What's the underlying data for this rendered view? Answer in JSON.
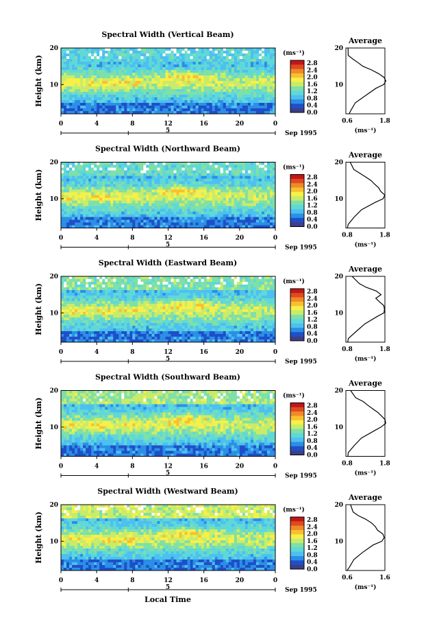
{
  "figure": {
    "x_label": "Local Time",
    "y_label": "Height (km)",
    "date_label": "Sep 1995",
    "unit_label": "(ms⁻¹)",
    "avg_title": "Average",
    "avg_unit": "(ms⁻¹)",
    "day_marker": "5"
  },
  "colors": {
    "scale": [
      "#3b3f8a",
      "#1f4fc8",
      "#2b8fe6",
      "#4dc0f0",
      "#5fd8d8",
      "#7fe0a8",
      "#c8ec6a",
      "#f6f04a",
      "#f8c030",
      "#f08a28",
      "#e04a20",
      "#c01818"
    ]
  },
  "chart_data": [
    {
      "type": "heatmap",
      "title": "Spectral Width (Vertical Beam)",
      "xlabel": "",
      "ylabel": "Height (km)",
      "x_ticks": [
        "0",
        "4",
        "8",
        "12",
        "16",
        "20",
        "0"
      ],
      "y_ticks": [
        "20",
        "10"
      ],
      "xlim": [
        0,
        24
      ],
      "ylim": [
        2,
        20
      ],
      "colorbar_ticks": [
        "2.8",
        "2.4",
        "2.0",
        "1.6",
        "1.2",
        "0.8",
        "0.4",
        "0.0"
      ],
      "average": {
        "type": "line",
        "title": "Average",
        "xlabel": "(ms⁻¹)",
        "x_ticks": [
          "0.6",
          "1.8"
        ],
        "y_ticks": [
          "20",
          "10"
        ],
        "xlim": [
          0.6,
          1.8
        ],
        "ylim": [
          2,
          20
        ],
        "x": [
          0.7,
          0.75,
          0.9,
          1.2,
          1.55,
          1.75,
          1.8,
          1.75,
          1.6,
          1.4,
          1.15,
          0.95,
          0.8,
          0.7,
          0.65
        ],
        "y": [
          2,
          3,
          5,
          7,
          9,
          10,
          11,
          12,
          13,
          14,
          15,
          16,
          17,
          18,
          20
        ]
      }
    },
    {
      "type": "heatmap",
      "title": "Spectral Width (Northward Beam)",
      "xlabel": "",
      "ylabel": "Height (km)",
      "x_ticks": [
        "0",
        "4",
        "8",
        "12",
        "16",
        "20",
        "0"
      ],
      "y_ticks": [
        "20",
        "10"
      ],
      "xlim": [
        0,
        24
      ],
      "ylim": [
        2,
        20
      ],
      "colorbar_ticks": [
        "2.8",
        "2.4",
        "2.0",
        "1.6",
        "1.2",
        "0.8",
        "0.4",
        "0.0"
      ],
      "average": {
        "type": "line",
        "title": "Average",
        "xlabel": "(ms⁻¹)",
        "x_ticks": [
          "0.8",
          "1.8"
        ],
        "y_ticks": [
          "20",
          "10"
        ],
        "xlim": [
          0.6,
          1.8
        ],
        "ylim": [
          2,
          20
        ],
        "x": [
          0.65,
          0.7,
          0.85,
          1.1,
          1.5,
          1.75,
          1.8,
          1.7,
          1.6,
          1.5,
          1.35,
          1.2,
          1.0,
          0.85,
          0.75
        ],
        "y": [
          2,
          3,
          5,
          7,
          9,
          10,
          11,
          12,
          13,
          14,
          15,
          16,
          17,
          18,
          20
        ]
      }
    },
    {
      "type": "heatmap",
      "title": "Spectral Width (Eastward Beam)",
      "xlabel": "",
      "ylabel": "Height (km)",
      "x_ticks": [
        "0",
        "4",
        "8",
        "12",
        "16",
        "20",
        "0"
      ],
      "y_ticks": [
        "20",
        "10"
      ],
      "xlim": [
        0,
        24
      ],
      "ylim": [
        2,
        20
      ],
      "colorbar_ticks": [
        "2.8",
        "2.4",
        "2.0",
        "1.6",
        "1.2",
        "0.8",
        "0.4",
        "0.0"
      ],
      "average": {
        "type": "line",
        "title": "Average",
        "xlabel": "(ms⁻¹)",
        "x_ticks": [
          "0.8",
          "1.8"
        ],
        "y_ticks": [
          "20",
          "10"
        ],
        "xlim": [
          0.6,
          1.8
        ],
        "ylim": [
          2,
          20
        ],
        "x": [
          0.65,
          0.7,
          0.9,
          1.2,
          1.55,
          1.75,
          1.8,
          1.75,
          1.65,
          1.55,
          1.7,
          1.5,
          1.25,
          1.0,
          0.8
        ],
        "y": [
          2,
          3,
          5,
          7,
          9,
          10,
          11,
          12,
          13,
          14,
          15,
          16,
          17,
          18,
          20
        ]
      }
    },
    {
      "type": "heatmap",
      "title": "Spectral Width (Southward Beam)",
      "xlabel": "",
      "ylabel": "Height (km)",
      "x_ticks": [
        "0",
        "4",
        "8",
        "12",
        "16",
        "20",
        "0"
      ],
      "y_ticks": [
        "20",
        "10"
      ],
      "xlim": [
        0,
        24
      ],
      "ylim": [
        2,
        20
      ],
      "colorbar_ticks": [
        "2.8",
        "2.4",
        "2.0",
        "1.6",
        "1.2",
        "0.8",
        "0.4",
        "0.0"
      ],
      "average": {
        "type": "line",
        "title": "Average",
        "xlabel": "(ms⁻¹)",
        "x_ticks": [
          "0.8",
          "1.8"
        ],
        "y_ticks": [
          "20",
          "10"
        ],
        "xlim": [
          0.6,
          1.8
        ],
        "ylim": [
          2,
          20
        ],
        "x": [
          0.65,
          0.7,
          0.85,
          1.1,
          1.45,
          1.7,
          1.8,
          1.8,
          1.7,
          1.6,
          1.45,
          1.3,
          1.1,
          0.9,
          0.75
        ],
        "y": [
          2,
          3,
          5,
          7,
          9,
          10,
          11,
          12,
          13,
          14,
          15,
          16,
          17,
          18,
          20
        ]
      }
    },
    {
      "type": "heatmap",
      "title": "Spectral Width (Westward Beam)",
      "xlabel": "Local Time",
      "ylabel": "Height (km)",
      "x_ticks": [
        "0",
        "4",
        "8",
        "12",
        "16",
        "20",
        "0"
      ],
      "y_ticks": [
        "20",
        "10"
      ],
      "xlim": [
        0,
        24
      ],
      "ylim": [
        2,
        20
      ],
      "colorbar_ticks": [
        "2.8",
        "2.4",
        "2.0",
        "1.6",
        "1.2",
        "0.8",
        "0.4",
        "0.0"
      ],
      "average": {
        "type": "line",
        "title": "Average",
        "xlabel": "(ms⁻¹)",
        "x_ticks": [
          "0.6",
          "1.6"
        ],
        "y_ticks": [
          "20",
          "10"
        ],
        "xlim": [
          0.6,
          1.8
        ],
        "ylim": [
          2,
          20
        ],
        "x": [
          0.65,
          0.7,
          0.85,
          1.1,
          1.45,
          1.7,
          1.8,
          1.75,
          1.6,
          1.5,
          1.4,
          1.2,
          1.0,
          0.85,
          0.75
        ],
        "y": [
          2,
          3,
          5,
          7,
          9,
          10,
          11,
          12,
          13,
          14,
          15,
          16,
          17,
          18,
          20
        ]
      }
    }
  ]
}
